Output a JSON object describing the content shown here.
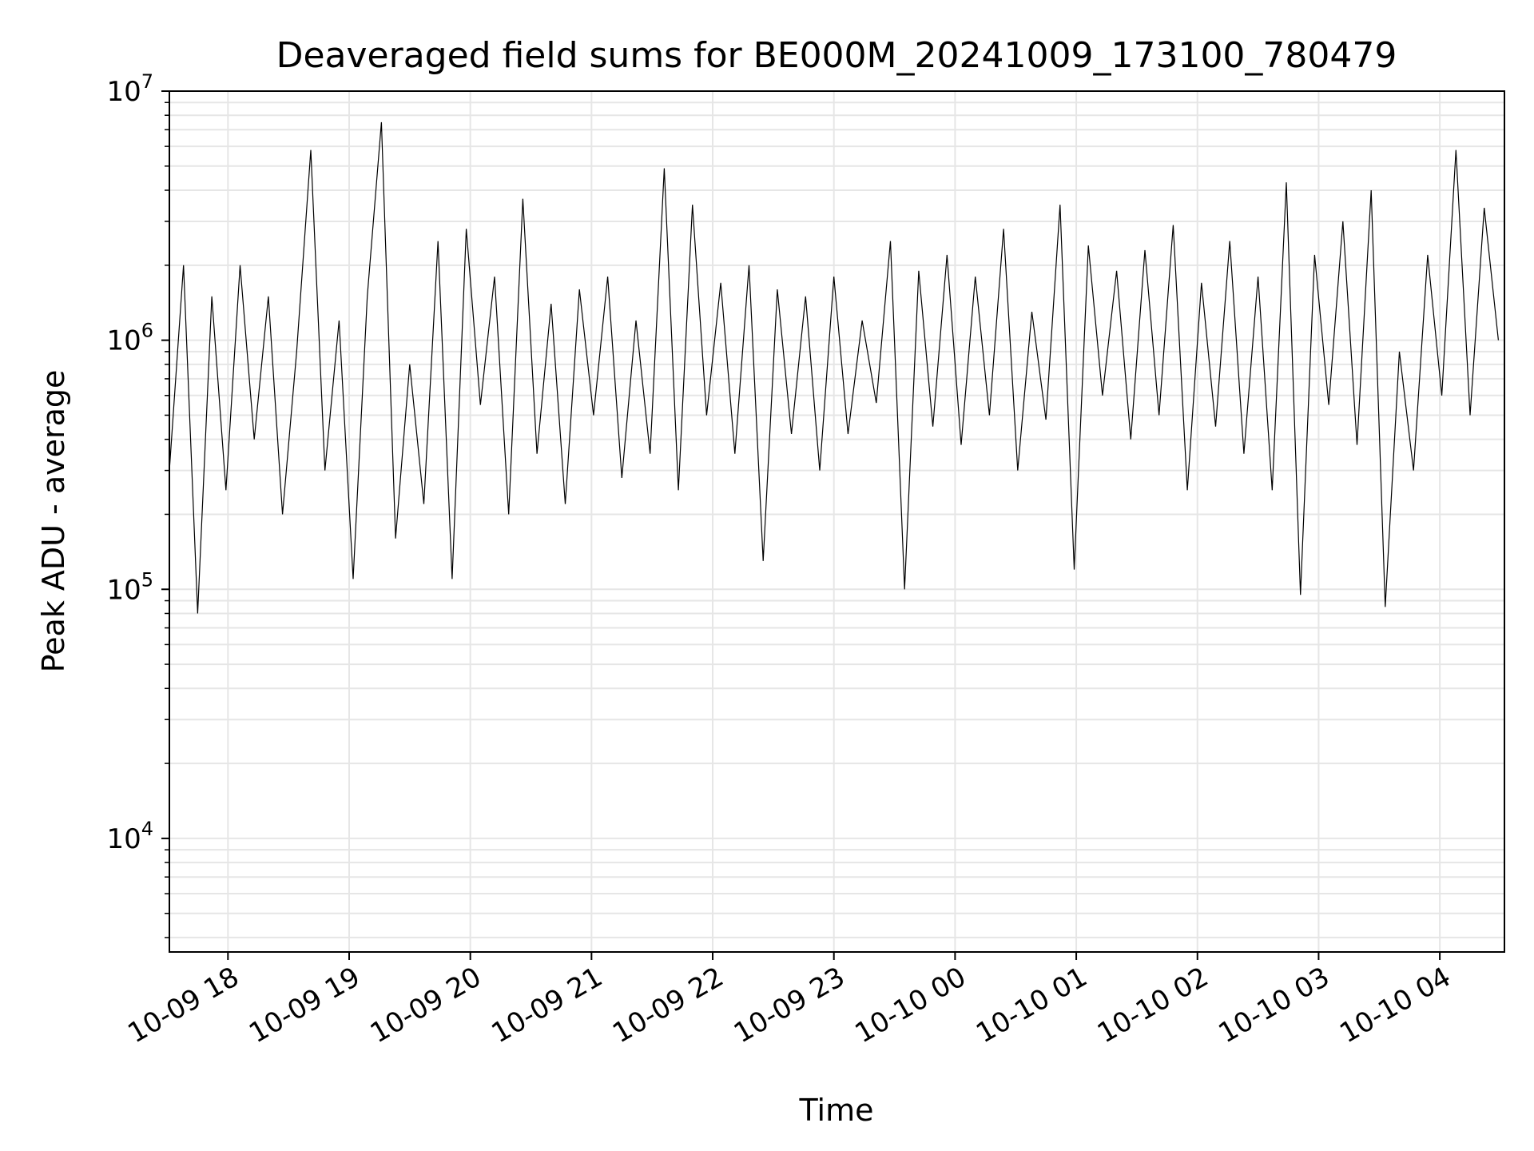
{
  "chart_data": {
    "type": "line",
    "title": "Deaveraged field sums for BE000M_20241009_173100_780479",
    "xlabel": "Time",
    "ylabel": "Peak ADU - average",
    "yscale": "log",
    "ylim": [
      3500,
      10000000
    ],
    "xlim": [
      "2024-10-09 17:31",
      "2024-10-10 04:32"
    ],
    "grid": true,
    "x_ticks": [
      {
        "value": "2024-10-09 18:00",
        "label": "10-09 18"
      },
      {
        "value": "2024-10-09 19:00",
        "label": "10-09 19"
      },
      {
        "value": "2024-10-09 20:00",
        "label": "10-09 20"
      },
      {
        "value": "2024-10-09 21:00",
        "label": "10-09 21"
      },
      {
        "value": "2024-10-09 22:00",
        "label": "10-09 22"
      },
      {
        "value": "2024-10-09 23:00",
        "label": "10-09 23"
      },
      {
        "value": "2024-10-10 00:00",
        "label": "10-10 00"
      },
      {
        "value": "2024-10-10 01:00",
        "label": "10-10 01"
      },
      {
        "value": "2024-10-10 02:00",
        "label": "10-10 02"
      },
      {
        "value": "2024-10-10 03:00",
        "label": "10-10 03"
      },
      {
        "value": "2024-10-10 04:00",
        "label": "10-10 04"
      }
    ],
    "y_ticks": [
      {
        "value": 10000,
        "base": "10",
        "exp": "4"
      },
      {
        "value": 100000,
        "base": "10",
        "exp": "5"
      },
      {
        "value": 1000000,
        "base": "10",
        "exp": "6"
      },
      {
        "value": 10000000,
        "base": "10",
        "exp": "7"
      }
    ],
    "series": [
      {
        "color": "#000000",
        "x": [
          "2024-10-09 17:31",
          "2024-10-09 17:38",
          "2024-10-09 17:45",
          "2024-10-09 17:52",
          "2024-10-09 17:59",
          "2024-10-09 18:06",
          "2024-10-09 18:13",
          "2024-10-09 18:20",
          "2024-10-09 18:27",
          "2024-10-09 18:34",
          "2024-10-09 18:41",
          "2024-10-09 18:48",
          "2024-10-09 18:55",
          "2024-10-09 19:02",
          "2024-10-09 19:09",
          "2024-10-09 19:16",
          "2024-10-09 19:23",
          "2024-10-09 19:30",
          "2024-10-09 19:37",
          "2024-10-09 19:44",
          "2024-10-09 19:51",
          "2024-10-09 19:58",
          "2024-10-09 20:05",
          "2024-10-09 20:12",
          "2024-10-09 20:19",
          "2024-10-09 20:26",
          "2024-10-09 20:33",
          "2024-10-09 20:40",
          "2024-10-09 20:47",
          "2024-10-09 20:54",
          "2024-10-09 21:01",
          "2024-10-09 21:08",
          "2024-10-09 21:15",
          "2024-10-09 21:22",
          "2024-10-09 21:29",
          "2024-10-09 21:36",
          "2024-10-09 21:43",
          "2024-10-09 21:50",
          "2024-10-09 21:57",
          "2024-10-09 22:04",
          "2024-10-09 22:11",
          "2024-10-09 22:18",
          "2024-10-09 22:25",
          "2024-10-09 22:32",
          "2024-10-09 22:39",
          "2024-10-09 22:46",
          "2024-10-09 22:53",
          "2024-10-09 23:00",
          "2024-10-09 23:07",
          "2024-10-09 23:14",
          "2024-10-09 23:21",
          "2024-10-09 23:28",
          "2024-10-09 23:35",
          "2024-10-09 23:42",
          "2024-10-09 23:49",
          "2024-10-09 23:56",
          "2024-10-10 00:03",
          "2024-10-10 00:10",
          "2024-10-10 00:17",
          "2024-10-10 00:24",
          "2024-10-10 00:31",
          "2024-10-10 00:38",
          "2024-10-10 00:45",
          "2024-10-10 00:52",
          "2024-10-10 00:59",
          "2024-10-10 01:06",
          "2024-10-10 01:13",
          "2024-10-10 01:20",
          "2024-10-10 01:27",
          "2024-10-10 01:34",
          "2024-10-10 01:41",
          "2024-10-10 01:48",
          "2024-10-10 01:55",
          "2024-10-10 02:02",
          "2024-10-10 02:09",
          "2024-10-10 02:16",
          "2024-10-10 02:23",
          "2024-10-10 02:30",
          "2024-10-10 02:37",
          "2024-10-10 02:44",
          "2024-10-10 02:51",
          "2024-10-10 02:58",
          "2024-10-10 03:05",
          "2024-10-10 03:12",
          "2024-10-10 03:19",
          "2024-10-10 03:26",
          "2024-10-10 03:33",
          "2024-10-10 03:40",
          "2024-10-10 03:47",
          "2024-10-10 03:54",
          "2024-10-10 04:01",
          "2024-10-10 04:08",
          "2024-10-10 04:15",
          "2024-10-10 04:22",
          "2024-10-10 04:29"
        ],
        "y": [
          300000,
          2000000,
          80000,
          1500000,
          250000,
          2000000,
          400000,
          1500000,
          200000,
          900000,
          5800000,
          300000,
          1200000,
          110000,
          1500000,
          7500000,
          160000,
          800000,
          220000,
          2500000,
          110000,
          2800000,
          550000,
          1800000,
          200000,
          3700000,
          350000,
          1400000,
          220000,
          1600000,
          500000,
          1800000,
          280000,
          1200000,
          350000,
          4900000,
          250000,
          3500000,
          500000,
          1700000,
          350000,
          2000000,
          130000,
          1600000,
          420000,
          1500000,
          300000,
          1800000,
          420000,
          1200000,
          560000,
          2500000,
          100000,
          1900000,
          450000,
          2200000,
          380000,
          1800000,
          500000,
          2800000,
          300000,
          1300000,
          480000,
          3500000,
          120000,
          2400000,
          600000,
          1900000,
          400000,
          2300000,
          500000,
          2900000,
          250000,
          1700000,
          450000,
          2500000,
          350000,
          1800000,
          250000,
          4300000,
          95000,
          2200000,
          550000,
          3000000,
          380000,
          4000000,
          85000,
          900000,
          300000,
          2200000,
          600000,
          5800000,
          500000,
          3400000,
          1000000
        ],
        "_unused": []
      }
    ]
  }
}
